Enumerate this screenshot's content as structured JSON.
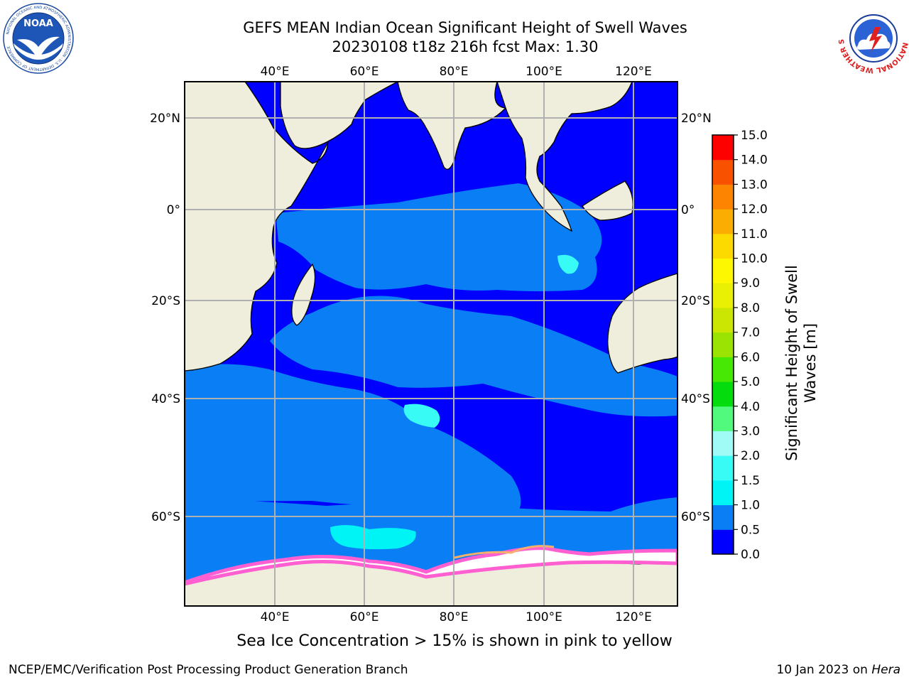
{
  "title": {
    "line1": "GEFS MEAN Indian Ocean Significant Height of Swell Waves",
    "line2": "20230108 t18z 216h fcst   Max: 1.30"
  },
  "map": {
    "lon_labels": [
      "40°E",
      "60°E",
      "80°E",
      "100°E",
      "120°E"
    ],
    "lat_labels": [
      "20°N",
      "0°",
      "20°S",
      "40°S",
      "60°S"
    ],
    "colors": {
      "land": "#efeedd",
      "ice": "#ffffff",
      "grid": "#b0b0b0"
    }
  },
  "colorbar": {
    "label": "Significant Height of Swell Waves [m]",
    "ticks": [
      "0.0",
      "0.5",
      "1.0",
      "1.5",
      "2.0",
      "3.0",
      "4.0",
      "5.0",
      "6.0",
      "7.0",
      "8.0",
      "9.0",
      "10.0",
      "11.0",
      "12.0",
      "13.0",
      "14.0",
      "15.0"
    ],
    "colors": [
      "#0000fe",
      "#0a7ff5",
      "#00f3f5",
      "#39fbf6",
      "#a0fbf6",
      "#51f97c",
      "#04dc0e",
      "#48e805",
      "#9be303",
      "#cce603",
      "#e9f003",
      "#fdf701",
      "#fcda00",
      "#fbad02",
      "#fc8400",
      "#f85100",
      "#fd0000"
    ]
  },
  "footer": {
    "ice_note": "Sea Ice Concentration > 15% is shown in pink to yellow",
    "credit": "NCEP/EMC/Verification Post Processing Product Generation Branch",
    "date": "10 Jan 2023 on",
    "machine": "Hera"
  },
  "logos": {
    "noaa": "NOAA",
    "noaa_ring": "NATIONAL OCEANIC AND ATMOSPHERIC ADMINISTRATION · U.S. DEPARTMENT OF COMMERCE",
    "nws_ring": "NATIONAL WEATHER SERVICE"
  }
}
